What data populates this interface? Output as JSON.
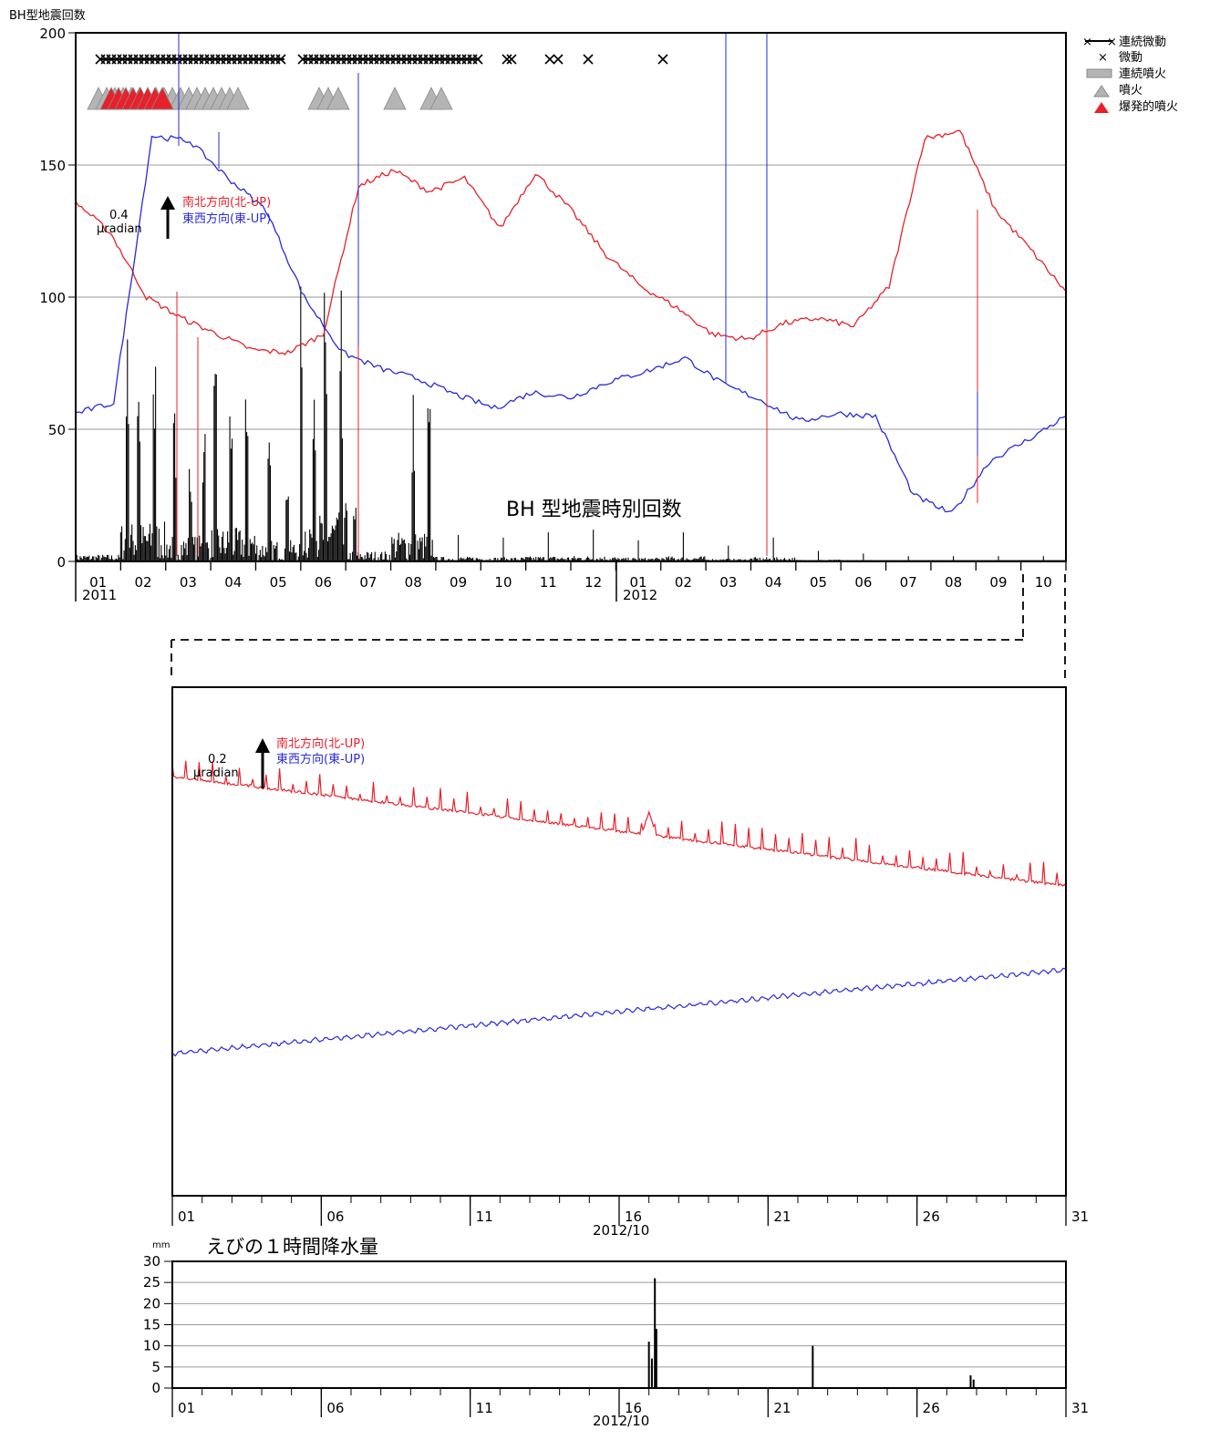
{
  "top_chart": {
    "ylabel": "BH型地震回数",
    "y_ticks": [
      "200",
      "150",
      "100",
      "50",
      "0"
    ],
    "month_labels": [
      "01",
      "02",
      "03",
      "04",
      "05",
      "06",
      "07",
      "08",
      "09",
      "10",
      "11",
      "12",
      "01",
      "02",
      "03",
      "04",
      "05",
      "06",
      "07",
      "08",
      "09",
      "10"
    ],
    "year_labels": [
      "2011",
      "2012"
    ],
    "bar_caption": "BH 型地震時別回数",
    "scale": {
      "value": "0.4",
      "unit": "μradian"
    },
    "direction_labels": {
      "ns": "南北方向(北-UP)",
      "ew": "東西方向(東-UP)"
    },
    "legend": [
      "連続微動",
      "微動",
      "連続噴火",
      "噴火",
      "爆発的噴火"
    ]
  },
  "mid_chart": {
    "scale": {
      "value": "0.2",
      "unit": "μradian"
    },
    "direction_labels": {
      "ns": "南北方向(北-UP)",
      "ew": "東西方向(東-UP)"
    },
    "day_labels": [
      "01",
      "06",
      "11",
      "16",
      "21",
      "26",
      "31"
    ],
    "period_label": "2012/10"
  },
  "rain_chart": {
    "unit": "mm",
    "title": "えびの１時間降水量",
    "y_ticks": [
      "30",
      "25",
      "20",
      "15",
      "10",
      "5",
      "0"
    ],
    "day_labels": [
      "01",
      "06",
      "11",
      "16",
      "21",
      "26",
      "31"
    ],
    "period_label": "2012/10"
  },
  "colors": {
    "ns": "#e8202a",
    "ew": "#2a2ad8",
    "bars": "#000000",
    "grid": "#9a9a9a"
  },
  "chart_data": [
    {
      "type": "bar",
      "title": "BH 型地震時別回数",
      "ylabel": "BH型地震回数",
      "ylim": [
        0,
        200
      ],
      "x_range": [
        "2011-01",
        "2012-10"
      ],
      "monthly_peak_counts": [
        {
          "month": "2011-01",
          "peak": 15
        },
        {
          "month": "2011-02",
          "peak": 84
        },
        {
          "month": "2011-03",
          "peak": 56
        },
        {
          "month": "2011-04",
          "peak": 71
        },
        {
          "month": "2011-05",
          "peak": 45
        },
        {
          "month": "2011-06",
          "peak": 104
        },
        {
          "month": "2011-07",
          "peak": 22
        },
        {
          "month": "2011-08",
          "peak": 63
        },
        {
          "month": "2011-09",
          "peak": 10
        },
        {
          "month": "2011-10",
          "peak": 9
        },
        {
          "month": "2011-11",
          "peak": 11
        },
        {
          "month": "2011-12",
          "peak": 12
        },
        {
          "month": "2012-01",
          "peak": 8
        },
        {
          "month": "2012-02",
          "peak": 11
        },
        {
          "month": "2012-03",
          "peak": 6
        },
        {
          "month": "2012-04",
          "peak": 9
        },
        {
          "month": "2012-05",
          "peak": 4
        },
        {
          "month": "2012-06",
          "peak": 3
        },
        {
          "month": "2012-07",
          "peak": 2
        },
        {
          "month": "2012-08",
          "peak": 2
        },
        {
          "month": "2012-09",
          "peak": 2
        },
        {
          "month": "2012-10",
          "peak": 2
        }
      ]
    },
    {
      "type": "line",
      "series": [
        {
          "name": "南北方向(北-UP)",
          "values": [
            136,
            124,
            100,
            92,
            86,
            80,
            79,
            86,
            142,
            148,
            140,
            145,
            126,
            147,
            133,
            116,
            104,
            96,
            86,
            84,
            90,
            92,
            89,
            104,
            160,
            163,
            133,
            118,
            102
          ]
        },
        {
          "name": "東西方向(東-UP)",
          "values": [
            56,
            60,
            161,
            159,
            145,
            133,
            100,
            79,
            73,
            69,
            63,
            58,
            64,
            62,
            68,
            72,
            77,
            67,
            61,
            53,
            56,
            55,
            25,
            18,
            38,
            46,
            55
          ]
        }
      ]
    },
    {
      "type": "bar",
      "title": "えびの１時間降水量",
      "ylabel": "mm",
      "ylim": [
        0,
        30
      ],
      "x_range": [
        "2012-10-01",
        "2012-10-31"
      ],
      "bars": [
        {
          "day": 17.0,
          "value": 11
        },
        {
          "day": 17.1,
          "value": 7
        },
        {
          "day": 17.2,
          "value": 26
        },
        {
          "day": 17.25,
          "value": 14
        },
        {
          "day": 22.5,
          "value": 10
        },
        {
          "day": 27.8,
          "value": 3
        },
        {
          "day": 27.9,
          "value": 2
        }
      ]
    }
  ]
}
